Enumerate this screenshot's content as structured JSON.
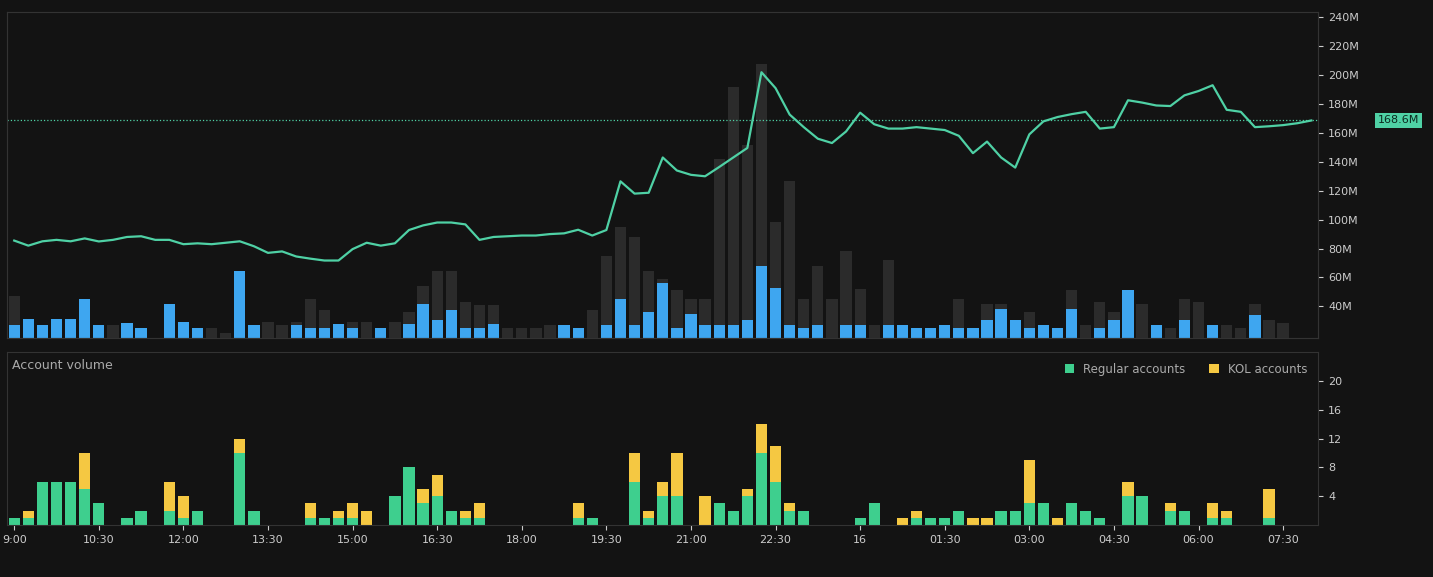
{
  "chart_data": [
    {
      "type": "line",
      "categories": [
        "9:00",
        null,
        null,
        null,
        null,
        null,
        "10:30",
        null,
        null,
        null,
        null,
        null,
        "12:00",
        null,
        null,
        null,
        null,
        null,
        "13:30",
        null,
        null,
        null,
        null,
        null,
        "15:00",
        null,
        null,
        null,
        null,
        null,
        "16:30",
        null,
        null,
        null,
        null,
        null,
        "18:00",
        null,
        null,
        null,
        null,
        null,
        "19:30",
        null,
        null,
        null,
        null,
        null,
        "21:00",
        null,
        null,
        null,
        null,
        null,
        "22:30",
        null,
        null,
        null,
        null,
        null,
        "16",
        null,
        null,
        null,
        null,
        null,
        "01:30",
        null,
        null,
        null,
        null,
        null,
        "03:00",
        null,
        null,
        null,
        null,
        null,
        "04:30",
        null,
        null,
        null,
        null,
        null,
        "06:00",
        null,
        null,
        null,
        null,
        null,
        "07:30",
        null,
        null
      ],
      "tick_labels": "y",
      "ylim": [
        18,
        244
      ],
      "yticks": [
        {
          "value": 40,
          "label": "40M"
        },
        {
          "value": 60,
          "label": "60M"
        },
        {
          "value": 80,
          "label": "80M"
        },
        {
          "value": 100,
          "label": "100M"
        },
        {
          "value": 120,
          "label": "120M"
        },
        {
          "value": 140,
          "label": "140M"
        },
        {
          "value": 160,
          "label": "160M"
        },
        {
          "value": 180,
          "label": "180M"
        },
        {
          "value": 200,
          "label": "200M"
        },
        {
          "value": 220,
          "label": "220M"
        },
        {
          "value": 240,
          "label": "240M"
        }
      ],
      "y2lim": [
        0,
        100
      ],
      "y2ticks": [],
      "annotations": [
        {
          "text": "168.6M",
          "y": 168.6
        }
      ],
      "series": [
        {
          "type": "bar",
          "axis": "y2",
          "color": "#2b2b2b",
          "values": [
            13,
            0,
            0,
            0,
            0,
            0,
            0,
            4,
            0,
            0,
            0,
            0,
            0,
            0,
            3,
            1.5,
            0,
            0,
            5,
            4,
            5,
            12,
            8.7,
            0,
            5,
            5,
            0,
            5,
            8,
            16,
            20.6,
            20.6,
            11,
            10,
            10,
            3,
            3,
            3,
            4,
            0,
            0,
            8.7,
            25,
            34,
            31,
            20.6,
            18,
            14.6,
            12,
            12,
            55,
            77,
            59,
            84,
            35.5,
            48,
            12,
            22,
            12,
            26.6,
            15,
            4,
            24,
            0,
            0,
            0,
            0,
            12,
            0,
            10.5,
            10.5,
            0,
            8,
            0,
            0,
            14.6,
            4,
            11,
            8,
            0,
            10.5,
            0,
            3,
            12,
            11,
            0,
            4,
            3,
            10.5,
            5.7,
            4.5,
            0,
            0
          ]
        },
        {
          "type": "bar",
          "axis": "y2",
          "color": "#3ea6f0",
          "values": [
            4,
            6,
            4,
            6,
            6,
            12,
            4,
            0,
            4.5,
            3,
            0,
            10.5,
            5,
            3,
            0,
            0,
            20.6,
            4,
            0,
            0,
            4,
            3,
            3,
            4.2,
            3,
            0,
            3,
            0,
            4.2,
            10.5,
            5.7,
            8.7,
            3,
            3,
            4.2,
            0,
            0,
            0,
            0,
            4,
            3,
            0,
            4,
            12,
            4,
            8,
            17,
            3,
            7.5,
            4,
            4,
            4,
            5.7,
            22,
            15.5,
            4,
            3,
            4,
            0,
            4,
            4,
            0,
            4,
            4,
            3,
            3,
            4,
            3,
            3,
            5.7,
            9,
            5.7,
            3,
            4,
            3,
            9,
            0,
            3,
            5.7,
            14.6,
            0,
            4,
            0,
            5.7,
            0,
            4,
            0,
            0,
            7,
            0,
            0,
            0,
            0
          ]
        },
        {
          "type": "line",
          "color": "#4fd1a5",
          "values": [
            85.5,
            82,
            85,
            86,
            85,
            87,
            84.9,
            86,
            88,
            88.5,
            86,
            86,
            83,
            83.6,
            83,
            84,
            85,
            81.6,
            77,
            78,
            74.5,
            73,
            71.7,
            71.7,
            79.6,
            84,
            82,
            83.6,
            92.8,
            96,
            98,
            98,
            96.7,
            86,
            88,
            88.5,
            89,
            89,
            90,
            90.5,
            93,
            89,
            92.8,
            126.5,
            118,
            118.6,
            143,
            134,
            131,
            130,
            136.4,
            143,
            149.6,
            202,
            191,
            172.7,
            164,
            156,
            153,
            161,
            174,
            166,
            163,
            163,
            164,
            163,
            162,
            158,
            146,
            154,
            143,
            136,
            159,
            168,
            171,
            173,
            174.6,
            163,
            164,
            182.6,
            181,
            179,
            178.6,
            186,
            189,
            193,
            176,
            174.6,
            164,
            164.6,
            165.4,
            166.7,
            168.6
          ]
        }
      ]
    },
    {
      "type": "bar",
      "title": "Account volume",
      "stacked": true,
      "legend": "upper right",
      "categories": [
        "9:00",
        null,
        null,
        null,
        null,
        null,
        "10:30",
        null,
        null,
        null,
        null,
        null,
        "12:00",
        null,
        null,
        null,
        null,
        null,
        "13:30",
        null,
        null,
        null,
        null,
        null,
        "15:00",
        null,
        null,
        null,
        null,
        null,
        "16:30",
        null,
        null,
        null,
        null,
        null,
        "18:00",
        null,
        null,
        null,
        null,
        null,
        "19:30",
        null,
        null,
        null,
        null,
        null,
        "21:00",
        null,
        null,
        null,
        null,
        null,
        "22:30",
        null,
        null,
        null,
        null,
        null,
        "16",
        null,
        null,
        null,
        null,
        null,
        "01:30",
        null,
        null,
        null,
        null,
        null,
        "03:00",
        null,
        null,
        null,
        null,
        null,
        "04:30",
        null,
        null,
        null,
        null,
        null,
        "06:00",
        null,
        null,
        null,
        null,
        null,
        "07:30",
        null,
        null
      ],
      "ylim": [
        0,
        24
      ],
      "yticks": [
        4,
        8,
        12,
        16,
        20
      ],
      "series": [
        {
          "name": "Regular accounts",
          "color": "#3ecf8e",
          "values": [
            1,
            1,
            6,
            6,
            6,
            5,
            3,
            0,
            1,
            2,
            0,
            2,
            1,
            2,
            0,
            0,
            10,
            2,
            0,
            0,
            0,
            1,
            1,
            1,
            1,
            0,
            0,
            4,
            8,
            3,
            4,
            2,
            1,
            1,
            0,
            0,
            0,
            0,
            0,
            0,
            1,
            1,
            0,
            0,
            6,
            1,
            4,
            4,
            0,
            0,
            3,
            2,
            4,
            10,
            6,
            2,
            2,
            0,
            0,
            0,
            1,
            3,
            0,
            0,
            1,
            1,
            1,
            2,
            0,
            0,
            2,
            2,
            3,
            3,
            0,
            3,
            2,
            1,
            0,
            4,
            4,
            0,
            2,
            2,
            0,
            1,
            1,
            0,
            0,
            1,
            0,
            0,
            0
          ]
        },
        {
          "name": "KOL accounts",
          "color": "#f5c842",
          "values": [
            0,
            1,
            0,
            0,
            0,
            5,
            0,
            0,
            0,
            0,
            0,
            4,
            3,
            0,
            0,
            0,
            2,
            0,
            0,
            0,
            0,
            2,
            0,
            1,
            2,
            2,
            0,
            0,
            0,
            2,
            3,
            0,
            1,
            2,
            0,
            0,
            0,
            0,
            0,
            0,
            2,
            0,
            0,
            0,
            4,
            1,
            2,
            6,
            0,
            4,
            0,
            0,
            1,
            4,
            5,
            1,
            0,
            0,
            0,
            0,
            0,
            0,
            0,
            1,
            1,
            0,
            0,
            0,
            1,
            1,
            0,
            0,
            6,
            0,
            1,
            0,
            0,
            0,
            0,
            2,
            0,
            0,
            1,
            0,
            0,
            2,
            1,
            0,
            0,
            4,
            0,
            0,
            0
          ]
        }
      ]
    }
  ]
}
